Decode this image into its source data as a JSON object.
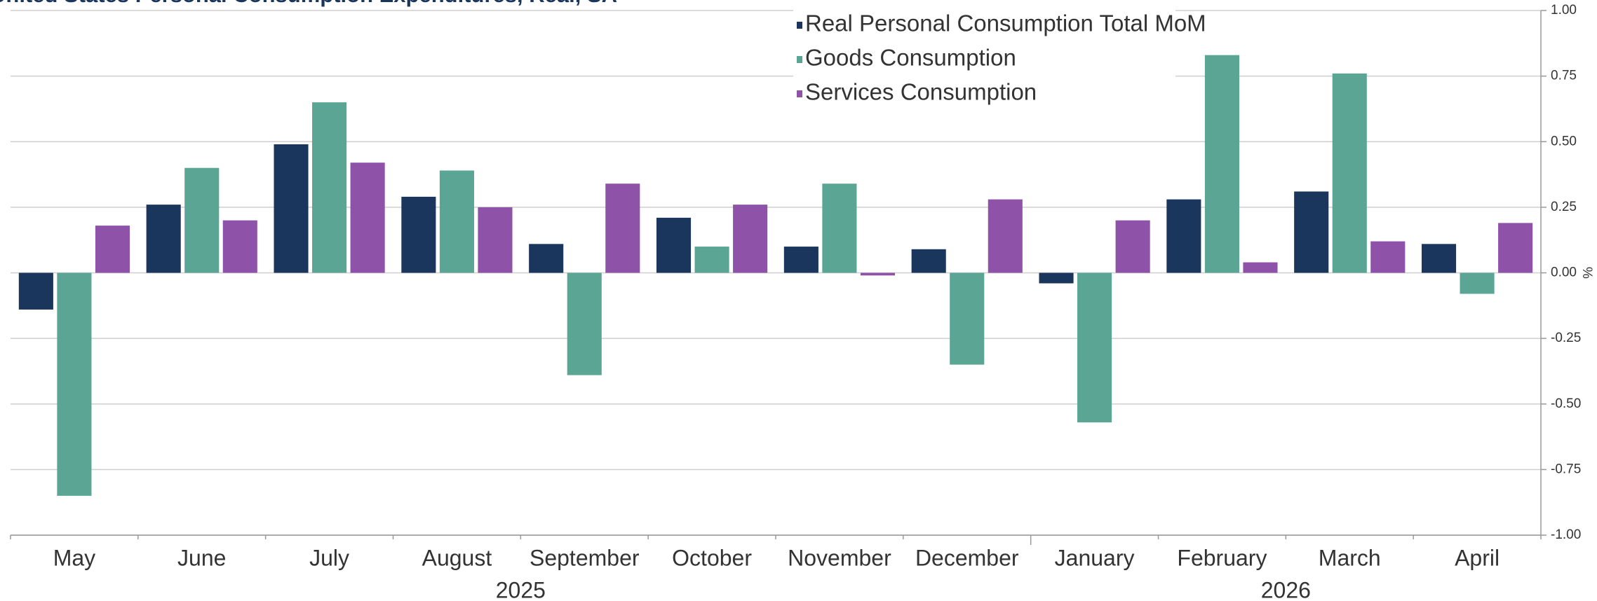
{
  "chart_data": {
    "type": "bar",
    "title": "United States Personal Consumption Expenditures, Real, SA",
    "categories": [
      "May",
      "June",
      "July",
      "August",
      "September",
      "October",
      "November",
      "December",
      "January",
      "February",
      "March",
      "April"
    ],
    "year_labels": [
      "2025",
      "2026"
    ],
    "y_axis_label": "%",
    "series": [
      {
        "name": "Real Personal Consumption Total MoM",
        "color": "#1b365d",
        "values": [
          -0.14,
          0.26,
          0.49,
          0.29,
          0.11,
          0.21,
          0.1,
          0.09,
          -0.04,
          0.28,
          0.31,
          0.11
        ]
      },
      {
        "name": "Goods Consumption",
        "color": "#5aa593",
        "values": [
          -0.85,
          0.4,
          0.65,
          0.39,
          -0.39,
          0.1,
          0.34,
          -0.35,
          -0.57,
          0.83,
          0.76,
          -0.08
        ]
      },
      {
        "name": "Services Consumption",
        "color": "#8e52a8",
        "values": [
          0.18,
          0.2,
          0.42,
          0.25,
          0.34,
          0.26,
          -0.01,
          0.28,
          0.2,
          0.04,
          0.12,
          0.19
        ]
      }
    ],
    "ylim": [
      -1,
      1
    ],
    "yticks": [
      {
        "value": -1,
        "label": "-1.00"
      },
      {
        "value": -0.75,
        "label": "-0.75"
      },
      {
        "value": -0.5,
        "label": "-0.50"
      },
      {
        "value": -0.25,
        "label": "-0.25"
      },
      {
        "value": 0,
        "label": "0.00"
      },
      {
        "value": 0.25,
        "label": "0.25"
      },
      {
        "value": 0.5,
        "label": "0.50"
      },
      {
        "value": 0.75,
        "label": "0.75"
      },
      {
        "value": 1,
        "label": "1.00"
      }
    ],
    "grid": true,
    "legend": "top"
  }
}
